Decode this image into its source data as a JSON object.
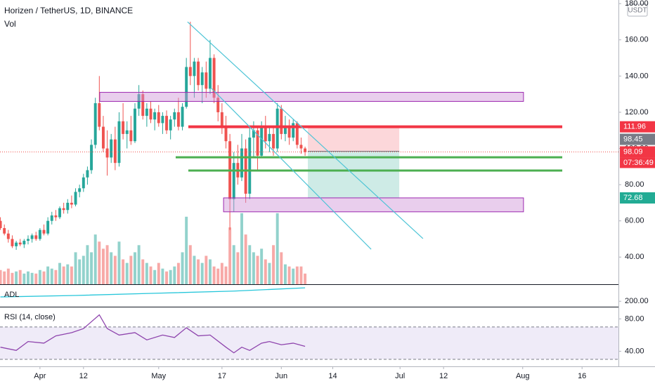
{
  "chart_data": [
    {
      "type": "candlestick",
      "title": "Horizen / TetherUS, 1D, BINANCE",
      "subtitle": "Vol",
      "unit_badge": "USDT",
      "x": [
        81,
        82,
        83,
        84,
        85,
        86,
        87,
        88,
        89,
        90,
        91,
        92,
        93,
        94,
        95,
        96,
        97,
        98,
        99,
        100,
        101,
        102,
        103,
        104,
        105,
        106,
        107,
        108,
        109,
        110,
        111,
        112,
        113,
        114,
        115,
        116,
        117,
        118,
        119,
        120,
        121,
        122,
        123,
        124,
        125,
        126,
        127,
        128,
        129,
        130,
        131,
        132,
        133,
        134,
        135,
        136,
        137,
        138,
        139,
        140,
        141,
        142,
        143,
        144,
        145,
        146,
        147,
        148,
        149,
        150,
        151,
        152,
        153,
        154,
        155,
        156,
        157,
        158
      ],
      "open": [
        60,
        56,
        53,
        50,
        46,
        48,
        47,
        49,
        50,
        52,
        50,
        55,
        53,
        60,
        63,
        62,
        67,
        66,
        70,
        69,
        76,
        78,
        84,
        88,
        102,
        125,
        112,
        100,
        95,
        105,
        92,
        115,
        108,
        110,
        104,
        122,
        130,
        118,
        122,
        116,
        120,
        114,
        118,
        110,
        116,
        120,
        112,
        123,
        145,
        140,
        148,
        135,
        142,
        133,
        150,
        128,
        120,
        112,
        104,
        72,
        92,
        84,
        100,
        75,
        106,
        110,
        96,
        112,
        104,
        108,
        100,
        122,
        108,
        112,
        106,
        114,
        102,
        100
      ],
      "high": [
        62,
        58,
        55,
        52,
        49,
        50,
        50,
        52,
        53,
        54,
        56,
        58,
        62,
        65,
        66,
        68,
        70,
        72,
        74,
        78,
        80,
        86,
        90,
        105,
        128,
        140,
        118,
        110,
        108,
        112,
        120,
        125,
        115,
        118,
        125,
        135,
        132,
        125,
        126,
        122,
        124,
        120,
        121,
        118,
        122,
        128,
        125,
        150,
        170,
        150,
        150,
        145,
        148,
        160,
        152,
        135,
        125,
        118,
        108,
        98,
        102,
        108,
        105,
        112,
        115,
        112,
        115,
        118,
        112,
        112,
        125,
        124,
        118,
        116,
        116,
        115,
        106,
        101
      ],
      "low": [
        55,
        52,
        48,
        45,
        44,
        46,
        45,
        47,
        48,
        49,
        49,
        52,
        52,
        58,
        60,
        61,
        64,
        64,
        67,
        68,
        73,
        76,
        80,
        86,
        100,
        110,
        98,
        85,
        92,
        88,
        90,
        105,
        100,
        102,
        103,
        118,
        116,
        112,
        114,
        110,
        112,
        108,
        108,
        105,
        112,
        110,
        110,
        122,
        135,
        128,
        132,
        125,
        128,
        130,
        125,
        115,
        108,
        100,
        55,
        65,
        80,
        82,
        70,
        72,
        95,
        88,
        95,
        100,
        98,
        96,
        98,
        105,
        104,
        102,
        104,
        100,
        97,
        96
      ],
      "close": [
        56,
        53,
        50,
        46,
        48,
        47,
        49,
        50,
        52,
        50,
        55,
        53,
        60,
        63,
        62,
        67,
        66,
        70,
        69,
        76,
        78,
        84,
        88,
        102,
        125,
        112,
        100,
        95,
        105,
        92,
        115,
        108,
        110,
        104,
        122,
        130,
        118,
        122,
        116,
        120,
        114,
        118,
        110,
        116,
        120,
        112,
        123,
        145,
        140,
        148,
        135,
        142,
        133,
        150,
        128,
        120,
        112,
        104,
        72,
        92,
        84,
        100,
        75,
        106,
        110,
        96,
        112,
        104,
        108,
        100,
        122,
        108,
        112,
        106,
        114,
        102,
        100,
        98.09
      ],
      "up_color": "#26a69a",
      "down_color": "#ef5350",
      "volume": {
        "values": [
          20,
          18,
          22,
          16,
          18,
          20,
          15,
          18,
          16,
          15,
          20,
          18,
          25,
          22,
          20,
          30,
          25,
          28,
          25,
          45,
          35,
          40,
          55,
          45,
          70,
          60,
          50,
          55,
          45,
          40,
          60,
          35,
          30,
          40,
          45,
          55,
          35,
          30,
          25,
          20,
          30,
          22,
          18,
          20,
          25,
          30,
          45,
          95,
          55,
          40,
          35,
          30,
          40,
          35,
          25,
          22,
          30,
          25,
          80,
          55,
          45,
          100,
          70,
          55,
          45,
          40,
          50,
          35,
          30,
          55,
          100,
          45,
          28,
          25,
          22,
          25,
          25,
          15
        ],
        "ylim": [
          0,
          400
        ],
        "up_color": "rgba(38,166,154,0.5)",
        "down_color": "rgba(239,83,80,0.5)"
      },
      "xlim": [
        80.9,
        237.2
      ],
      "ylim": [
        25,
        182
      ],
      "yticks": [
        {
          "value": 40,
          "label": "40.00"
        },
        {
          "value": 60,
          "label": "60.00"
        },
        {
          "value": 80,
          "label": "80.00"
        },
        {
          "value": 100,
          "label": "100.00"
        },
        {
          "value": 120,
          "label": "120.00"
        },
        {
          "value": 140,
          "label": "140.00"
        },
        {
          "value": 160,
          "label": "160.00"
        },
        {
          "value": 180,
          "label": "180.00"
        }
      ],
      "xticks": [
        {
          "value": 91,
          "label": "Apr"
        },
        {
          "value": 102,
          "label": "12"
        },
        {
          "value": 121,
          "label": "May"
        },
        {
          "value": 137,
          "label": "17"
        },
        {
          "value": 152,
          "label": "Jun"
        },
        {
          "value": 165,
          "label": "14"
        },
        {
          "value": 182,
          "label": "Jul"
        },
        {
          "value": 193,
          "label": "12"
        },
        {
          "value": 213,
          "label": "Aug"
        },
        {
          "value": 228,
          "label": "16"
        }
      ],
      "grid": false,
      "drawings": {
        "rectangles": [
          {
            "x": [
              106.1,
              213.2
            ],
            "y": [
              126,
              131
            ]
          },
          {
            "x": [
              137.4,
              213.2
            ],
            "y": [
              65,
              72.7
            ]
          }
        ],
        "rect_fill": "rgba(206,147,216,0.45)",
        "rect_stroke": "#9c27b0",
        "hlines": [
          {
            "value": 111.96,
            "x": [
              128.5,
              223
            ],
            "color": "#f23645",
            "width": 4
          },
          {
            "value": 95.1,
            "x": [
              125.3,
              223
            ],
            "color": "#4caf50",
            "width": 3
          },
          {
            "value": 87.8,
            "x": [
              128.5,
              223
            ],
            "color": "#4caf50",
            "width": 3
          }
        ],
        "trendlines": [
          {
            "x": [
              128.3,
              187.8
            ],
            "y": [
              169.9,
              50.2
            ]
          },
          {
            "x": [
              134.2,
              174.7
            ],
            "y": [
              133.5,
              44.3
            ]
          }
        ],
        "trend_color": "#4dc4d6",
        "position": {
          "x": [
            158.7,
            181.8
          ],
          "entry": 98.45,
          "stop": 111.96,
          "target": 72.68,
          "stop_fill": "rgba(242,54,69,0.2)",
          "target_fill": "rgba(8,153,129,0.2)"
        }
      },
      "price_labels": [
        {
          "value": 111.96,
          "color": "#f23645"
        },
        {
          "value": 98.45,
          "color": "#787b86"
        },
        {
          "value": 98.09,
          "color": "#f23645",
          "countdown": "07:36:49"
        },
        {
          "value": 72.68,
          "color": "#22ab94"
        }
      ]
    },
    {
      "type": "line",
      "title": "ADL",
      "x": [
        81,
        100,
        120,
        140,
        150,
        158
      ],
      "values": [
        212,
        216,
        222,
        228,
        233,
        237
      ],
      "color": "#26c6da",
      "ylim": [
        185,
        245
      ],
      "yticks": [
        {
          "value": 200,
          "label": "200.00"
        }
      ]
    },
    {
      "type": "line",
      "title": "RSI (14, close)",
      "x": [
        81,
        85,
        88,
        92,
        95,
        99,
        102,
        106,
        108,
        111,
        115,
        118,
        122,
        125,
        128,
        131,
        134,
        138,
        140,
        142,
        144,
        147,
        149,
        152,
        155,
        158
      ],
      "values": [
        45,
        41,
        52,
        50,
        59,
        63,
        68,
        85,
        68,
        60,
        63,
        54,
        60,
        57,
        69,
        59,
        60,
        45,
        38,
        45,
        41,
        50,
        52,
        48,
        50,
        46
      ],
      "color": "#8e44ad",
      "ylim": [
        21.3,
        94.2
      ],
      "yticks": [
        {
          "value": 40,
          "label": "40.00"
        },
        {
          "value": 80,
          "label": "80.00"
        }
      ],
      "bands": [
        30,
        70
      ],
      "band_color": "rgba(126,87,194,0.12)"
    }
  ]
}
